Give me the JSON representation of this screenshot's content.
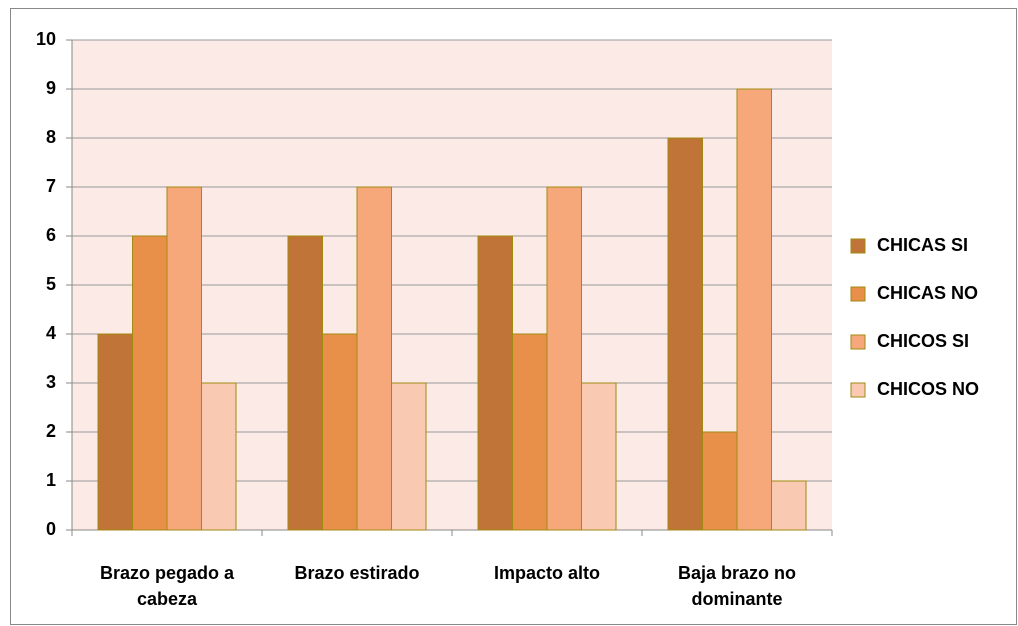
{
  "chart_data": {
    "type": "bar",
    "categories": [
      "Brazo pegado a cabeza",
      "Brazo estirado",
      "Impacto alto",
      "Baja brazo no dominante"
    ],
    "series": [
      {
        "name": "CHICAS SI",
        "color": "#c07438",
        "values": [
          4,
          6,
          6,
          8
        ]
      },
      {
        "name": "CHICAS NO",
        "color": "#e8904a",
        "values": [
          6,
          4,
          4,
          2
        ]
      },
      {
        "name": "CHICOS SI",
        "color": "#f7a87a",
        "values": [
          7,
          7,
          7,
          9
        ]
      },
      {
        "name": "CHICOS NO",
        "color": "#f9c9b2",
        "values": [
          3,
          3,
          3,
          1
        ]
      }
    ],
    "ylim": [
      0,
      10
    ],
    "yticks": [
      0,
      1,
      2,
      3,
      4,
      5,
      6,
      7,
      8,
      9,
      10
    ],
    "grid": true,
    "legend": "right"
  }
}
